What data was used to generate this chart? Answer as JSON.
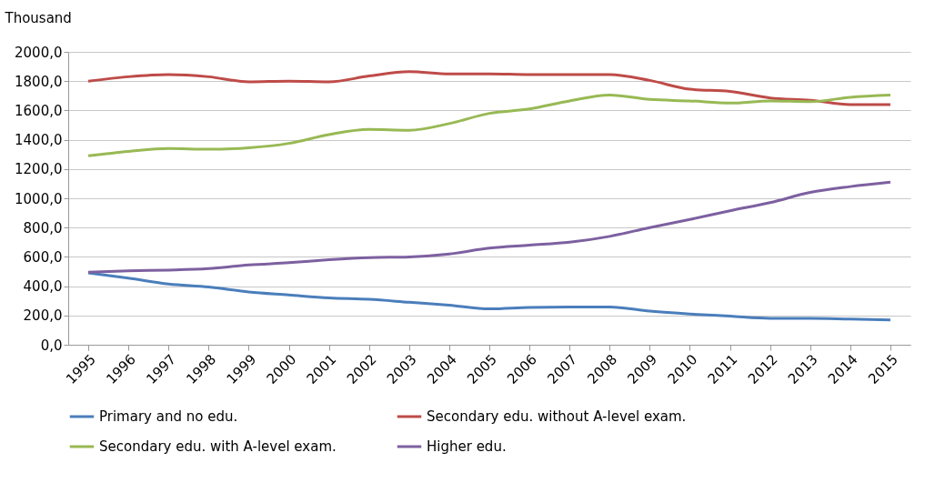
{
  "chart_data": {
    "type": "line",
    "ylabel": "Thousand",
    "categories": [
      "1995",
      "1996",
      "1997",
      "1998",
      "1999",
      "2000",
      "2001",
      "2002",
      "2003",
      "2004",
      "2005",
      "2006",
      "2007",
      "2008",
      "2009",
      "2010",
      "2011",
      "2012",
      "2013",
      "2014",
      "2015"
    ],
    "series": [
      {
        "name": "Primary and no edu.",
        "color": "#4a7ebb",
        "values": [
          490,
          455,
          415,
          395,
          360,
          340,
          320,
          310,
          290,
          270,
          245,
          255,
          258,
          258,
          230,
          210,
          195,
          180,
          180,
          175,
          170
        ]
      },
      {
        "name": "Secondary edu. without A-level exam.",
        "color": "#be4b48",
        "values": [
          1800,
          1830,
          1845,
          1830,
          1795,
          1800,
          1795,
          1835,
          1865,
          1850,
          1850,
          1845,
          1845,
          1845,
          1805,
          1745,
          1730,
          1685,
          1670,
          1640,
          1640
        ]
      },
      {
        "name": "Secondary edu. with A-level exam.",
        "color": "#98b954",
        "values": [
          1290,
          1320,
          1340,
          1335,
          1345,
          1375,
          1435,
          1470,
          1465,
          1510,
          1580,
          1610,
          1665,
          1705,
          1675,
          1665,
          1650,
          1665,
          1660,
          1690,
          1705
        ]
      },
      {
        "name": "Higher edu.",
        "color": "#7d60a0",
        "values": [
          495,
          505,
          510,
          520,
          545,
          560,
          580,
          595,
          600,
          620,
          660,
          680,
          700,
          740,
          800,
          855,
          915,
          970,
          1040,
          1080,
          1110
        ]
      }
    ],
    "ylim": [
      0,
      2000
    ],
    "yticks": [
      {
        "value": 0,
        "label": "0,0"
      },
      {
        "value": 200,
        "label": "200,0"
      },
      {
        "value": 400,
        "label": "400,0"
      },
      {
        "value": 600,
        "label": "600,0"
      },
      {
        "value": 800,
        "label": "800,0"
      },
      {
        "value": 1000,
        "label": "1000,0"
      },
      {
        "value": 1200,
        "label": "1200,0"
      },
      {
        "value": 1400,
        "label": "1400,0"
      },
      {
        "value": 1600,
        "label": "1600,0"
      },
      {
        "value": 1800,
        "label": "1800,0"
      },
      {
        "value": 2000,
        "label": "2000,0"
      }
    ],
    "grid": "y",
    "legend": "bottom",
    "line_style": "solid"
  }
}
